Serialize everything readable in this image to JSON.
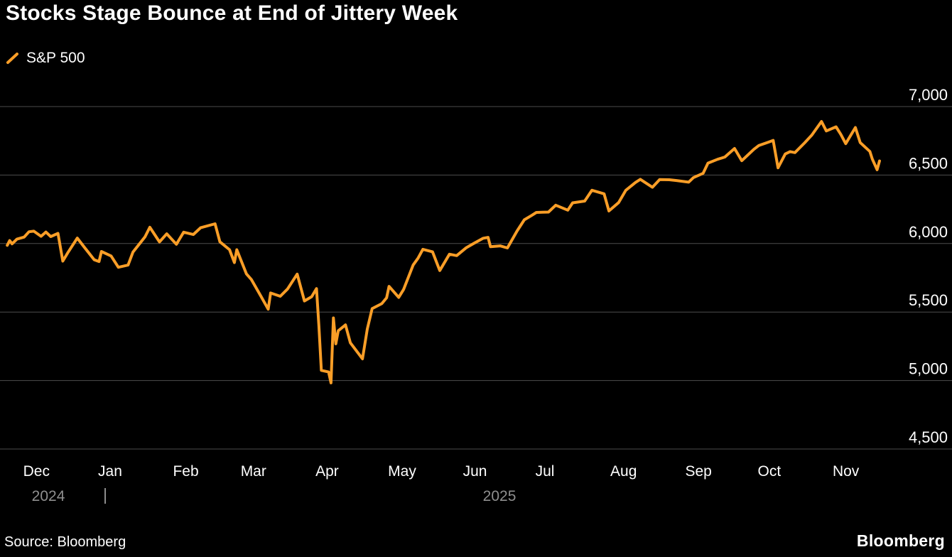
{
  "header": {
    "title": "Stocks Stage Bounce at End of Jittery Week"
  },
  "legend": {
    "series_label": "S&P 500"
  },
  "footer": {
    "source": "Source: Bloomberg",
    "brand": "Bloomberg"
  },
  "colors": {
    "background": "#000000",
    "line": "#fa9e27",
    "grid": "#4d4d4d",
    "text": "#ffffff",
    "year_text": "#8f8f8f"
  },
  "chart_data": {
    "type": "line",
    "title": "Stocks Stage Bounce at End of Jittery Week",
    "grid": "horizontal",
    "legend_position": "top-left",
    "ylim": [
      4400,
      7050
    ],
    "yticks": [
      4500,
      5000,
      5500,
      6000,
      6500,
      7000
    ],
    "ytick_labels": [
      "4,500",
      "5,000",
      "5,500",
      "6,000",
      "6,500",
      "7,000"
    ],
    "x_domain": [
      "2024-11-22",
      "2025-12-21"
    ],
    "year_boundary": "2025-01-01",
    "year_labels": [
      "2024",
      "2025"
    ],
    "x_ticks": [
      {
        "label": "Dec",
        "date": "2024-12-01"
      },
      {
        "label": "Jan",
        "date": "2025-01-01"
      },
      {
        "label": "Feb",
        "date": "2025-02-01"
      },
      {
        "label": "Mar",
        "date": "2025-03-01"
      },
      {
        "label": "Apr",
        "date": "2025-04-01"
      },
      {
        "label": "May",
        "date": "2025-05-01"
      },
      {
        "label": "Jun",
        "date": "2025-06-01"
      },
      {
        "label": "Jul",
        "date": "2025-07-01"
      },
      {
        "label": "Aug",
        "date": "2025-08-01"
      },
      {
        "label": "Sep",
        "date": "2025-09-01"
      },
      {
        "label": "Oct",
        "date": "2025-10-01"
      },
      {
        "label": "Nov",
        "date": "2025-11-01"
      }
    ],
    "series": [
      {
        "name": "S&P 500",
        "color": "#fa9e27",
        "points": [
          [
            "2024-11-25",
            5987
          ],
          [
            "2024-11-26",
            6022
          ],
          [
            "2024-11-27",
            5998
          ],
          [
            "2024-11-29",
            6032
          ],
          [
            "2024-12-02",
            6047
          ],
          [
            "2024-12-04",
            6086
          ],
          [
            "2024-12-06",
            6090
          ],
          [
            "2024-12-09",
            6053
          ],
          [
            "2024-12-11",
            6084
          ],
          [
            "2024-12-13",
            6051
          ],
          [
            "2024-12-16",
            6074
          ],
          [
            "2024-12-18",
            5872
          ],
          [
            "2024-12-20",
            5931
          ],
          [
            "2024-12-24",
            6040
          ],
          [
            "2024-12-27",
            5971
          ],
          [
            "2024-12-31",
            5882
          ],
          [
            "2025-01-02",
            5869
          ],
          [
            "2025-01-03",
            5942
          ],
          [
            "2025-01-07",
            5909
          ],
          [
            "2025-01-10",
            5827
          ],
          [
            "2025-01-14",
            5843
          ],
          [
            "2025-01-16",
            5937
          ],
          [
            "2025-01-21",
            6049
          ],
          [
            "2025-01-23",
            6119
          ],
          [
            "2025-01-27",
            6012
          ],
          [
            "2025-01-30",
            6071
          ],
          [
            "2025-02-03",
            5995
          ],
          [
            "2025-02-06",
            6083
          ],
          [
            "2025-02-10",
            6066
          ],
          [
            "2025-02-13",
            6115
          ],
          [
            "2025-02-19",
            6144
          ],
          [
            "2025-02-21",
            6013
          ],
          [
            "2025-02-25",
            5955
          ],
          [
            "2025-02-27",
            5861
          ],
          [
            "2025-02-28",
            5955
          ],
          [
            "2025-03-04",
            5778
          ],
          [
            "2025-03-06",
            5738
          ],
          [
            "2025-03-10",
            5615
          ],
          [
            "2025-03-13",
            5521
          ],
          [
            "2025-03-14",
            5639
          ],
          [
            "2025-03-18",
            5615
          ],
          [
            "2025-03-21",
            5668
          ],
          [
            "2025-03-25",
            5777
          ],
          [
            "2025-03-28",
            5581
          ],
          [
            "2025-03-31",
            5612
          ],
          [
            "2025-04-02",
            5671
          ],
          [
            "2025-04-03",
            5396
          ],
          [
            "2025-04-04",
            5074
          ],
          [
            "2025-04-07",
            5062
          ],
          [
            "2025-04-08",
            4983
          ],
          [
            "2025-04-09",
            5457
          ],
          [
            "2025-04-10",
            5268
          ],
          [
            "2025-04-11",
            5363
          ],
          [
            "2025-04-14",
            5406
          ],
          [
            "2025-04-16",
            5276
          ],
          [
            "2025-04-21",
            5158
          ],
          [
            "2025-04-23",
            5376
          ],
          [
            "2025-04-25",
            5525
          ],
          [
            "2025-04-29",
            5561
          ],
          [
            "2025-05-01",
            5604
          ],
          [
            "2025-05-02",
            5687
          ],
          [
            "2025-05-06",
            5607
          ],
          [
            "2025-05-08",
            5664
          ],
          [
            "2025-05-12",
            5844
          ],
          [
            "2025-05-14",
            5893
          ],
          [
            "2025-05-16",
            5958
          ],
          [
            "2025-05-20",
            5940
          ],
          [
            "2025-05-23",
            5803
          ],
          [
            "2025-05-27",
            5922
          ],
          [
            "2025-05-30",
            5912
          ],
          [
            "2025-06-03",
            5970
          ],
          [
            "2025-06-06",
            6000
          ],
          [
            "2025-06-10",
            6039
          ],
          [
            "2025-06-12",
            6045
          ],
          [
            "2025-06-13",
            5977
          ],
          [
            "2025-06-17",
            5983
          ],
          [
            "2025-06-20",
            5968
          ],
          [
            "2025-06-24",
            6092
          ],
          [
            "2025-06-27",
            6173
          ],
          [
            "2025-06-30",
            6205
          ],
          [
            "2025-07-02",
            6227
          ],
          [
            "2025-07-07",
            6230
          ],
          [
            "2025-07-10",
            6280
          ],
          [
            "2025-07-15",
            6244
          ],
          [
            "2025-07-17",
            6297
          ],
          [
            "2025-07-22",
            6310
          ],
          [
            "2025-07-25",
            6389
          ],
          [
            "2025-07-30",
            6363
          ],
          [
            "2025-08-01",
            6238
          ],
          [
            "2025-08-05",
            6299
          ],
          [
            "2025-08-08",
            6389
          ],
          [
            "2025-08-12",
            6446
          ],
          [
            "2025-08-14",
            6469
          ],
          [
            "2025-08-19",
            6411
          ],
          [
            "2025-08-22",
            6467
          ],
          [
            "2025-08-26",
            6466
          ],
          [
            "2025-08-29",
            6460
          ],
          [
            "2025-09-03",
            6448
          ],
          [
            "2025-09-05",
            6482
          ],
          [
            "2025-09-09",
            6513
          ],
          [
            "2025-09-11",
            6587
          ],
          [
            "2025-09-15",
            6615
          ],
          [
            "2025-09-18",
            6632
          ],
          [
            "2025-09-22",
            6694
          ],
          [
            "2025-09-25",
            6605
          ],
          [
            "2025-09-30",
            6688
          ],
          [
            "2025-10-02",
            6715
          ],
          [
            "2025-10-06",
            6740
          ],
          [
            "2025-10-08",
            6753
          ],
          [
            "2025-10-10",
            6553
          ],
          [
            "2025-10-13",
            6654
          ],
          [
            "2025-10-15",
            6671
          ],
          [
            "2025-10-17",
            6664
          ],
          [
            "2025-10-21",
            6735
          ],
          [
            "2025-10-24",
            6792
          ],
          [
            "2025-10-28",
            6891
          ],
          [
            "2025-10-30",
            6822
          ],
          [
            "2025-11-03",
            6852
          ],
          [
            "2025-11-05",
            6796
          ],
          [
            "2025-11-07",
            6729
          ],
          [
            "2025-11-11",
            6847
          ],
          [
            "2025-11-13",
            6737
          ],
          [
            "2025-11-17",
            6672
          ],
          [
            "2025-11-18",
            6617
          ],
          [
            "2025-11-20",
            6539
          ],
          [
            "2025-11-21",
            6603
          ]
        ]
      }
    ]
  }
}
